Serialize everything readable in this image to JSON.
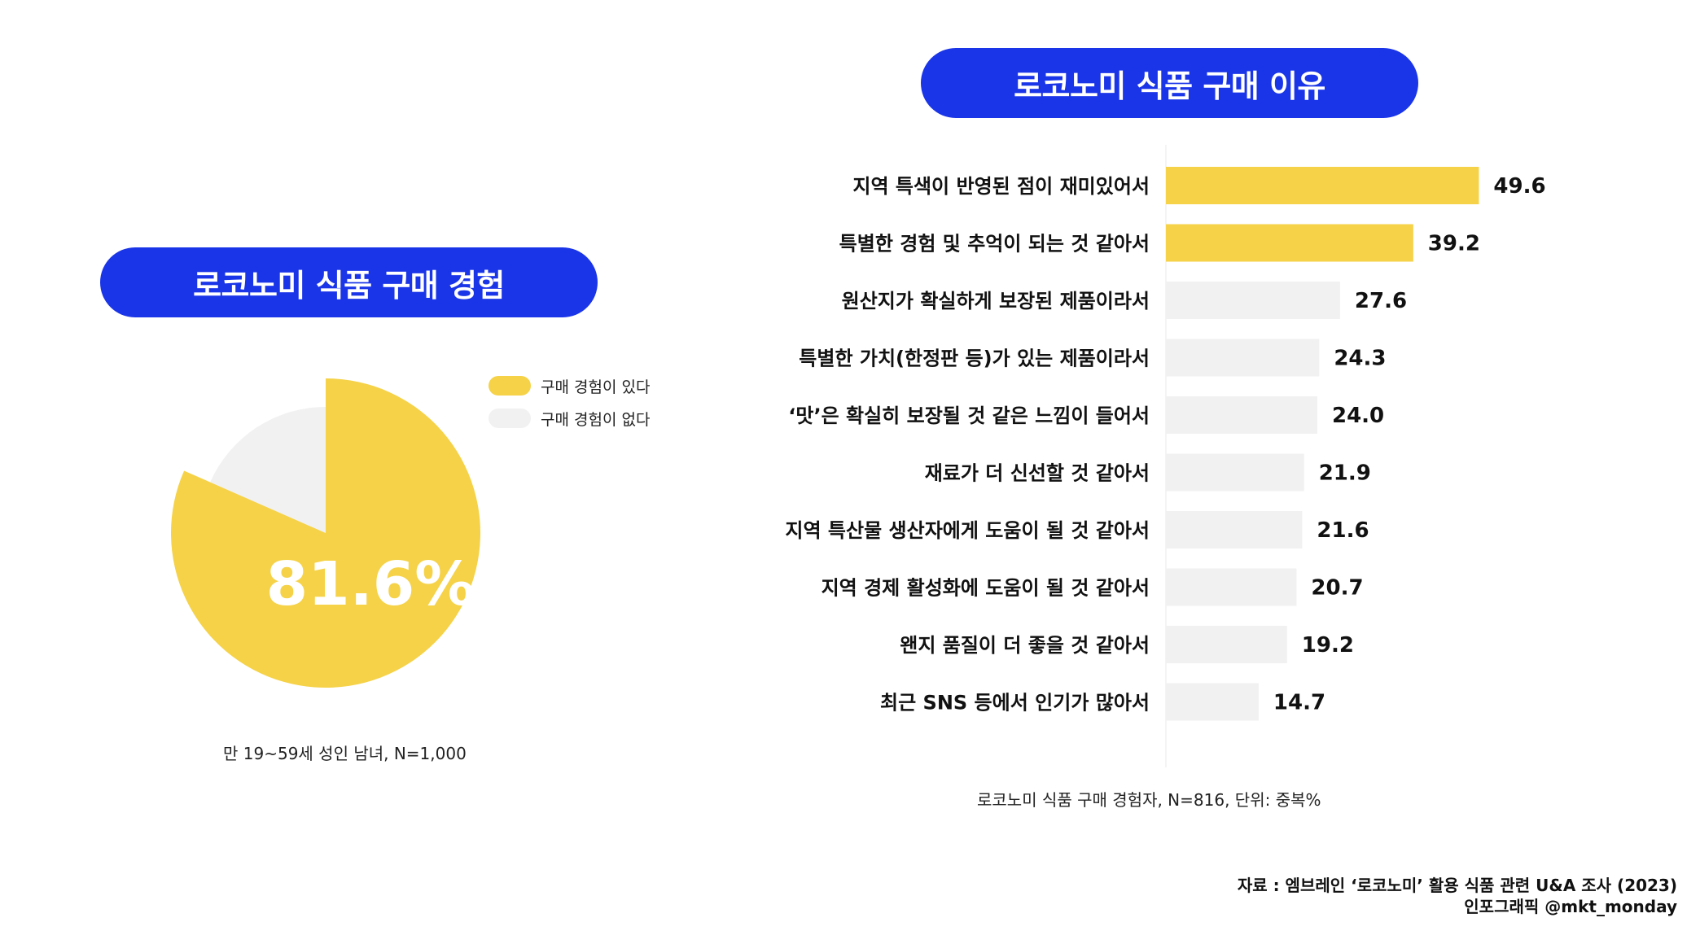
{
  "left_title": "로코노미 식품 구매 경험",
  "right_title": "로코노미 식품 구매 이유",
  "legend": {
    "yes_label": "구매 경험이 있다",
    "no_label": "구매 경험이 없다"
  },
  "pie_center_label": "81.6%",
  "left_note": "만 19~59세 성인 남녀, N=1,000",
  "right_note": "로코노미 식품 구매 경험자, N=816, 단위: 중복%",
  "source": "자료 : 엠브레인 ‘로코노미’ 활용 식품 관련 U&A 조사 (2023)",
  "credit": "인포그래픽 @mkt_monday",
  "colors": {
    "accent": "#1a35e8",
    "highlight": "#f5d247",
    "neutral": "#f1f1f1"
  },
  "chart_data": [
    {
      "type": "pie",
      "title": "로코노미 식품 구매 경험",
      "labels": [
        "구매 경험이 있다",
        "구매 경험이 없다"
      ],
      "values": [
        81.6,
        18.4
      ],
      "colors": [
        "#f5d247",
        "#f1f1f1"
      ],
      "center_label": "81.6%",
      "legend": "top-right"
    },
    {
      "type": "bar",
      "orientation": "horizontal",
      "title": "로코노미 식품 구매 이유",
      "categories": [
        "지역 특색이 반영된 점이 재미있어서",
        "특별한 경험 및 추억이 되는 것 같아서",
        "원산지가 확실하게 보장된 제품이라서",
        "특별한 가치(한정판 등)가 있는 제품이라서",
        "‘맛’은 확실히 보장될 것 같은 느낌이 들어서",
        "재료가 더 신선할 것 같아서",
        "지역 특산물 생산자에게 도움이 될 것 같아서",
        "지역 경제 활성화에 도움이 될 것 같아서",
        "왠지 품질이 더 좋을 것 같아서",
        "최근 SNS 등에서 인기가 많아서"
      ],
      "values": [
        49.6,
        39.2,
        27.6,
        24.3,
        24.0,
        21.9,
        21.6,
        20.7,
        19.2,
        14.7
      ],
      "value_labels": [
        "49.6",
        "39.2",
        "27.6",
        "24.3",
        "24.0",
        "21.9",
        "21.6",
        "20.7",
        "19.2",
        "14.7"
      ],
      "highlighted_count": 2,
      "unit": "중복%",
      "grid": false
    }
  ]
}
